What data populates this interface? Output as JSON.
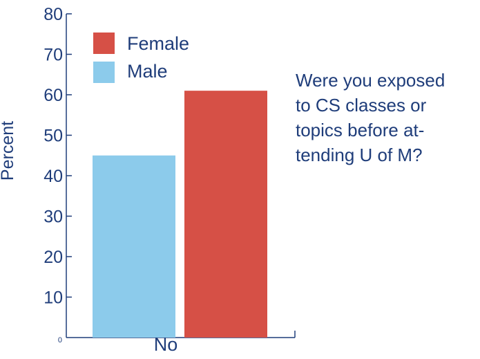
{
  "chart_data": {
    "type": "bar",
    "categories": [
      "No"
    ],
    "series": [
      {
        "name": "Male",
        "values": [
          45
        ],
        "color": "#8ccbeb"
      },
      {
        "name": "Female",
        "values": [
          61
        ],
        "color": "#d65046"
      }
    ],
    "ylabel": "Percent",
    "xlabel": "",
    "ylim": [
      0,
      80
    ],
    "yticks": [
      "0",
      "10",
      "20",
      "30",
      "40",
      "50",
      "60",
      "70",
      "80"
    ],
    "legend": [
      {
        "label": "Female",
        "color": "#d65046"
      },
      {
        "label": "Male",
        "color": "#8ccbeb"
      }
    ],
    "legend_position": "top-left",
    "grid": false,
    "annotation_lines": [
      "Were you exposed",
      "to CS classes or",
      "topics before at-",
      "tending U of M?"
    ]
  }
}
